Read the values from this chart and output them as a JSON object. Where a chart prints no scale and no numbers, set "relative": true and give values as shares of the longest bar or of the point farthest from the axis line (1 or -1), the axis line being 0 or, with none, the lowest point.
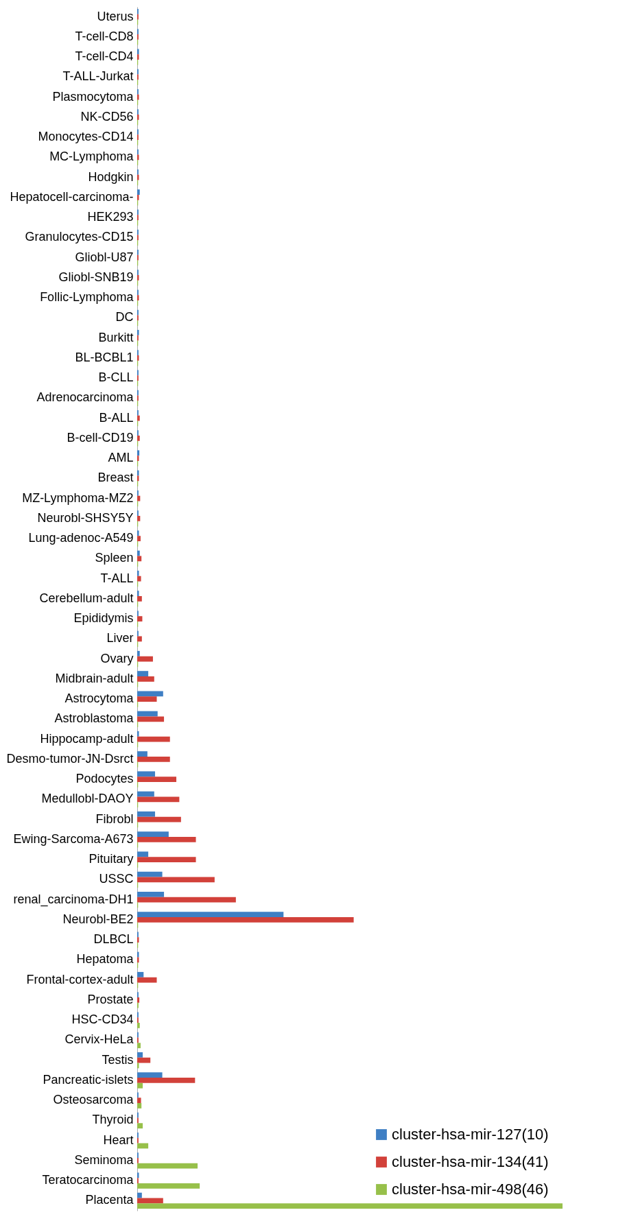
{
  "chart_data": {
    "type": "bar",
    "orientation": "horizontal",
    "relative": true,
    "legend": "bottom right",
    "categories": [
      "Uterus",
      "T-cell-CD8",
      "T-cell-CD4",
      "T-ALL-Jurkat",
      "Plasmocytoma",
      "NK-CD56",
      "Monocytes-CD14",
      "MC-Lymphoma",
      "Hodgkin",
      "Hepatocell-carcinoma-",
      "HEK293",
      "Granulocytes-CD15",
      "Gliobl-U87",
      "Gliobl-SNB19",
      "Follic-Lymphoma",
      "DC",
      "Burkitt",
      "BL-BCBL1",
      "B-CLL",
      "Adrenocarcinoma",
      "B-ALL",
      "B-cell-CD19",
      "AML",
      "Breast",
      "MZ-Lymphoma-MZ2",
      "Neurobl-SHSY5Y",
      "Lung-adenoc-A549",
      "Spleen",
      "T-ALL",
      "Cerebellum-adult",
      "Epididymis",
      "Liver",
      "Ovary",
      "Midbrain-adult",
      "Astrocytoma",
      "Astroblastoma",
      "Hippocamp-adult",
      "Desmo-tumor-JN-Dsrct",
      "Podocytes",
      "Medullobl-DAOY",
      "Fibrobl",
      "Ewing-Sarcoma-A673",
      "Pituitary",
      "USSC",
      "renal_carcinoma-DH1",
      "Neurobl-BE2",
      "DLBCL",
      "Hepatoma",
      "Frontal-cortex-adult",
      "Prostate",
      "HSC-CD34",
      "Cervix-HeLa",
      "Testis",
      "Pancreatic-islets",
      "Osteosarcoma",
      "Thyroid",
      "Heart",
      "Seminoma",
      "Teratocarcinoma",
      "Placenta"
    ],
    "series": [
      {
        "name": "cluster-hsa-mir-127(10)",
        "color": "#3f7fc4",
        "values": [
          0.003,
          0.003,
          0.004,
          0.003,
          0.003,
          0.003,
          0.003,
          0.003,
          0.003,
          0.006,
          0.003,
          0.003,
          0.003,
          0.003,
          0.003,
          0.003,
          0.004,
          0.003,
          0.003,
          0.003,
          0.003,
          0.003,
          0.005,
          0.004,
          0.003,
          0.003,
          0.004,
          0.006,
          0.004,
          0.004,
          0.003,
          0.003,
          0.006,
          0.026,
          0.061,
          0.048,
          0.004,
          0.024,
          0.042,
          0.04,
          0.042,
          0.074,
          0.026,
          0.059,
          0.063,
          0.344,
          0.003,
          0.004,
          0.015,
          0.003,
          0.003,
          0.003,
          0.013,
          0.059,
          0.003,
          0.003,
          0.003,
          0.003,
          0.004,
          0.011
        ]
      },
      {
        "name": "cluster-hsa-mir-134(41)",
        "color": "#d2413a",
        "values": [
          0.003,
          0.003,
          0.004,
          0.003,
          0.004,
          0.004,
          0.003,
          0.004,
          0.004,
          0.004,
          0.003,
          0.003,
          0.003,
          0.004,
          0.004,
          0.003,
          0.003,
          0.004,
          0.003,
          0.003,
          0.006,
          0.006,
          0.004,
          0.004,
          0.007,
          0.007,
          0.008,
          0.01,
          0.009,
          0.011,
          0.012,
          0.011,
          0.037,
          0.04,
          0.046,
          0.063,
          0.077,
          0.077,
          0.092,
          0.099,
          0.103,
          0.138,
          0.138,
          0.182,
          0.232,
          0.509,
          0.004,
          0.004,
          0.046,
          0.005,
          0.003,
          0.003,
          0.031,
          0.136,
          0.009,
          0.003,
          0.003,
          0.003,
          0.003,
          0.061
        ]
      },
      {
        "name": "cluster-hsa-mir-498(46)",
        "color": "#97c04a",
        "values": [
          0.002,
          0.002,
          0.002,
          0.002,
          0.002,
          0.002,
          0.002,
          0.002,
          0.002,
          0.002,
          0.002,
          0.002,
          0.002,
          0.002,
          0.002,
          0.002,
          0.002,
          0.002,
          0.002,
          0.002,
          0.002,
          0.002,
          0.002,
          0.002,
          0.002,
          0.002,
          0.002,
          0.002,
          0.002,
          0.002,
          0.002,
          0.002,
          0.002,
          0.002,
          0.002,
          0.002,
          0.002,
          0.002,
          0.002,
          0.002,
          0.002,
          0.002,
          0.002,
          0.002,
          0.002,
          0.002,
          0.002,
          0.002,
          0.002,
          0.003,
          0.006,
          0.008,
          0.004,
          0.013,
          0.01,
          0.013,
          0.026,
          0.142,
          0.147,
          1
        ]
      }
    ]
  }
}
